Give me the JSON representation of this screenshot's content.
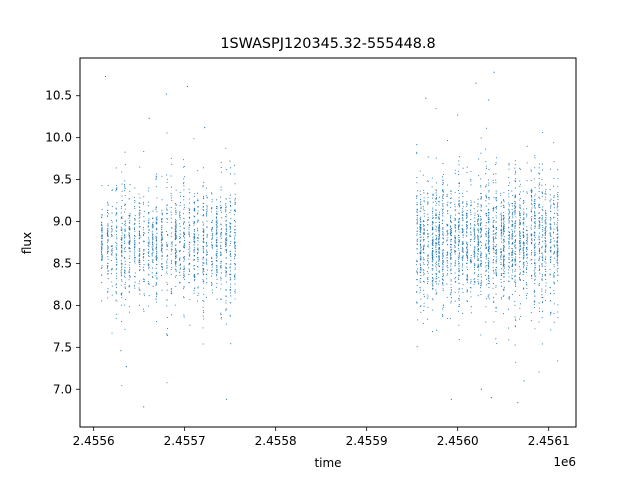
{
  "chart_data": {
    "type": "scatter",
    "title": "1SWASPJ120345.32-555448.8",
    "xlabel": "time",
    "ylabel": "flux",
    "x_offset_label": "1e6",
    "xlim": [
      2455585,
      2456130
    ],
    "ylim": [
      6.55,
      10.95
    ],
    "x_ticks": [
      2.4556,
      2.4557,
      2.4558,
      2.4559,
      2.456,
      2.4561
    ],
    "x_tick_labels": [
      "2.4556",
      "2.4557",
      "2.4558",
      "2.4559",
      "2.4560",
      "2.4561"
    ],
    "y_ticks": [
      7.0,
      7.5,
      8.0,
      8.5,
      9.0,
      9.5,
      10.0,
      10.5
    ],
    "y_tick_labels": [
      "7.0",
      "7.5",
      "8.0",
      "8.5",
      "9.0",
      "9.5",
      "10.0",
      "10.5"
    ],
    "marker_color": "#1f77b4",
    "grid": false,
    "legend": false,
    "series": [
      {
        "segments": [
          {
            "x_start": 2455610,
            "x_end": 2455755,
            "center": 8.75,
            "spread": 0.32,
            "n_nights": 30,
            "points_per_night": 60
          },
          {
            "x_start": 2455955,
            "x_end": 2456110,
            "center": 8.75,
            "spread": 0.36,
            "n_nights": 38,
            "points_per_night": 70
          }
        ],
        "outlier_values": [
          {
            "x": 2455613,
            "y": 10.73
          },
          {
            "x": 2455661,
            "y": 10.23
          },
          {
            "x": 2455680,
            "y": 10.52
          },
          {
            "x": 2455703,
            "y": 10.61
          },
          {
            "x": 2455722,
            "y": 10.12
          },
          {
            "x": 2455655,
            "y": 6.79
          },
          {
            "x": 2455636,
            "y": 7.27
          },
          {
            "x": 2455746,
            "y": 6.88
          },
          {
            "x": 2455630,
            "y": 7.46
          },
          {
            "x": 2456020,
            "y": 10.65
          },
          {
            "x": 2456040,
            "y": 10.78
          },
          {
            "x": 2456034,
            "y": 10.45
          },
          {
            "x": 2456000,
            "y": 10.27
          },
          {
            "x": 2455965,
            "y": 10.47
          },
          {
            "x": 2455993,
            "y": 6.88
          },
          {
            "x": 2456026,
            "y": 7.0
          },
          {
            "x": 2456037,
            "y": 6.9
          },
          {
            "x": 2456066,
            "y": 6.84
          },
          {
            "x": 2456073,
            "y": 7.1
          }
        ]
      }
    ]
  }
}
